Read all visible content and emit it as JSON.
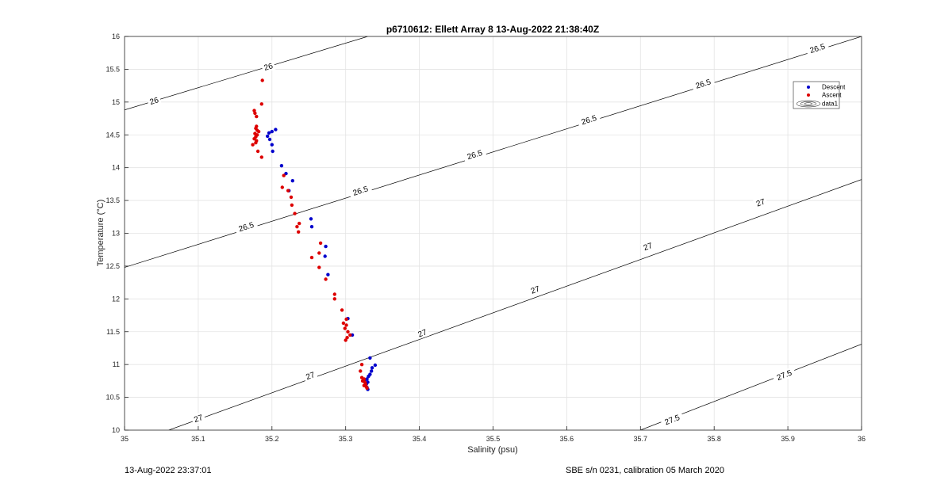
{
  "chart_data": {
    "type": "scatter",
    "title": "p6710612: Ellett Array 8 13-Aug-2022 21:38:40Z",
    "xlabel": "Salinity (psu)",
    "ylabel": "Temperature (°C)",
    "xlim": [
      35,
      36
    ],
    "ylim": [
      10,
      16
    ],
    "xticks": [
      "35",
      "35.1",
      "35.2",
      "35.3",
      "35.4",
      "35.5",
      "35.6",
      "35.7",
      "35.8",
      "35.9",
      "36"
    ],
    "yticks": [
      "10",
      "10.5",
      "11",
      "11.5",
      "12",
      "12.5",
      "13",
      "13.5",
      "14",
      "14.5",
      "15",
      "15.5",
      "16"
    ],
    "grid": true,
    "legend_position": "top-right",
    "series": [
      {
        "name": "Descent",
        "color": "#0000cc",
        "marker": "dot",
        "points": [
          [
            35.205,
            14.58
          ],
          [
            35.2,
            14.55
          ],
          [
            35.196,
            14.53
          ],
          [
            35.194,
            14.48
          ],
          [
            35.197,
            14.43
          ],
          [
            35.2,
            14.35
          ],
          [
            35.201,
            14.25
          ],
          [
            35.213,
            14.03
          ],
          [
            35.219,
            13.91
          ],
          [
            35.228,
            13.8
          ],
          [
            35.223,
            13.65
          ],
          [
            35.253,
            13.22
          ],
          [
            35.254,
            13.1
          ],
          [
            35.273,
            12.8
          ],
          [
            35.272,
            12.65
          ],
          [
            35.276,
            12.37
          ],
          [
            35.303,
            11.7
          ],
          [
            35.309,
            11.45
          ],
          [
            35.333,
            11.1
          ],
          [
            35.34,
            10.99
          ],
          [
            35.336,
            10.95
          ],
          [
            35.335,
            10.9
          ],
          [
            35.333,
            10.85
          ],
          [
            35.331,
            10.82
          ],
          [
            35.329,
            10.78
          ],
          [
            35.326,
            10.76
          ],
          [
            35.33,
            10.73
          ],
          [
            35.328,
            10.7
          ],
          [
            35.329,
            10.65
          ],
          [
            35.33,
            10.62
          ]
        ]
      },
      {
        "name": "Ascent",
        "color": "#dd0000",
        "marker": "dot",
        "points": [
          [
            35.187,
            15.33
          ],
          [
            35.186,
            14.97
          ],
          [
            35.176,
            14.87
          ],
          [
            35.177,
            14.83
          ],
          [
            35.179,
            14.78
          ],
          [
            35.179,
            14.63
          ],
          [
            35.178,
            14.6
          ],
          [
            35.18,
            14.57
          ],
          [
            35.182,
            14.55
          ],
          [
            35.177,
            14.52
          ],
          [
            35.18,
            14.5
          ],
          [
            35.178,
            14.47
          ],
          [
            35.176,
            14.44
          ],
          [
            35.179,
            14.41
          ],
          [
            35.178,
            14.38
          ],
          [
            35.174,
            14.35
          ],
          [
            35.181,
            14.25
          ],
          [
            35.186,
            14.16
          ],
          [
            35.216,
            13.88
          ],
          [
            35.214,
            13.7
          ],
          [
            35.222,
            13.65
          ],
          [
            35.226,
            13.55
          ],
          [
            35.227,
            13.43
          ],
          [
            35.231,
            13.3
          ],
          [
            35.237,
            13.15
          ],
          [
            35.234,
            13.1
          ],
          [
            35.236,
            13.02
          ],
          [
            35.254,
            12.63
          ],
          [
            35.264,
            12.7
          ],
          [
            35.266,
            12.85
          ],
          [
            35.264,
            12.48
          ],
          [
            35.273,
            12.3
          ],
          [
            35.285,
            12.07
          ],
          [
            35.285,
            12.0
          ],
          [
            35.295,
            11.83
          ],
          [
            35.297,
            11.63
          ],
          [
            35.301,
            11.6
          ],
          [
            35.299,
            11.55
          ],
          [
            35.303,
            11.5
          ],
          [
            35.306,
            11.45
          ],
          [
            35.302,
            11.41
          ],
          [
            35.3,
            11.37
          ],
          [
            35.301,
            11.69
          ],
          [
            35.322,
            11.0
          ],
          [
            35.32,
            10.9
          ],
          [
            35.322,
            10.8
          ],
          [
            35.325,
            10.78
          ],
          [
            35.323,
            10.75
          ],
          [
            35.326,
            10.73
          ],
          [
            35.327,
            10.7
          ],
          [
            35.325,
            10.68
          ],
          [
            35.328,
            10.66
          ],
          [
            35.329,
            10.64
          ]
        ]
      },
      {
        "name": "data1",
        "color": "#000000",
        "marker": "contour",
        "contours": [
          {
            "label": "26",
            "points": [
              [
                35.0,
                14.88
              ],
              [
                35.33,
                16.0
              ]
            ]
          },
          {
            "label": "26.5",
            "points": [
              [
                35.0,
                12.48
              ],
              [
                36.0,
                16.0
              ]
            ]
          },
          {
            "label": "27",
            "points": [
              [
                35.06,
                10.0
              ],
              [
                36.0,
                13.82
              ]
            ]
          },
          {
            "label": "27.5",
            "points": [
              [
                35.7,
                10.0
              ],
              [
                36.0,
                11.31
              ]
            ]
          }
        ],
        "contour_labels": [
          {
            "text": "26",
            "at": [
              35.04,
              15.02
            ]
          },
          {
            "text": "26",
            "at": [
              35.195,
              15.54
            ]
          },
          {
            "text": "26.5",
            "at": [
              35.165,
              13.1
            ]
          },
          {
            "text": "26.5",
            "at": [
              35.32,
              13.65
            ]
          },
          {
            "text": "26.5",
            "at": [
              35.475,
              14.2
            ]
          },
          {
            "text": "26.5",
            "at": [
              35.63,
              14.73
            ]
          },
          {
            "text": "26.5",
            "at": [
              35.785,
              15.28
            ]
          },
          {
            "text": "26.5",
            "at": [
              35.94,
              15.82
            ]
          },
          {
            "text": "27",
            "at": [
              35.1,
              10.18
            ]
          },
          {
            "text": "27",
            "at": [
              35.252,
              10.83
            ]
          },
          {
            "text": "27",
            "at": [
              35.404,
              11.48
            ]
          },
          {
            "text": "27",
            "at": [
              35.557,
              12.14
            ]
          },
          {
            "text": "27",
            "at": [
              35.71,
              12.8
            ]
          },
          {
            "text": "27",
            "at": [
              35.863,
              13.47
            ]
          },
          {
            "text": "27.5",
            "at": [
              35.743,
              10.16
            ]
          },
          {
            "text": "27.5",
            "at": [
              35.895,
              10.84
            ]
          }
        ]
      }
    ]
  },
  "legend": {
    "items": [
      {
        "label": "Descent",
        "color": "#0000cc"
      },
      {
        "label": "Ascent",
        "color": "#dd0000"
      },
      {
        "label": "data1",
        "color": "#000000"
      }
    ]
  },
  "footer": {
    "left": "13-Aug-2022 23:37:01",
    "right": "SBE s/n 0231, calibration 05 March 2020"
  }
}
